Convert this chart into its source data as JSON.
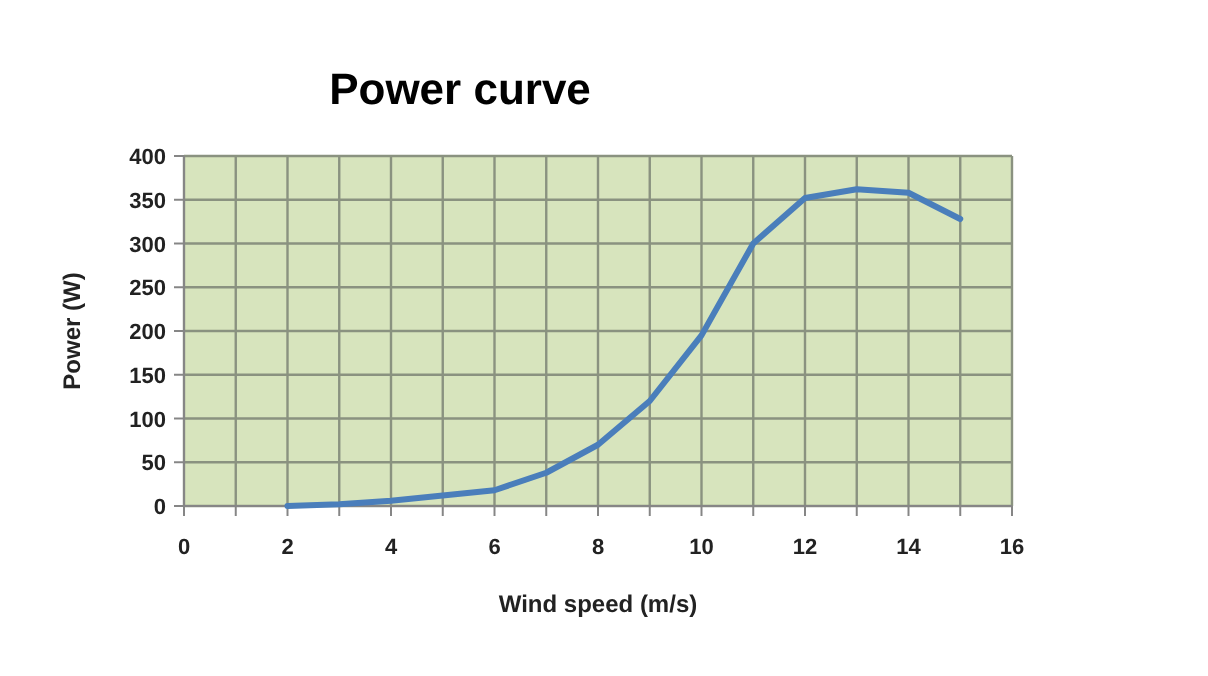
{
  "chart_data": {
    "type": "line",
    "title": "Power curve",
    "xlabel": "Wind speed (m/s)",
    "ylabel": "Power (W)",
    "x": [
      2,
      3,
      4,
      5,
      6,
      7,
      8,
      9,
      10,
      11,
      12,
      13,
      14,
      15
    ],
    "series": [
      {
        "color": "#4a7ebb",
        "values": [
          0,
          2,
          6,
          12,
          18,
          38,
          70,
          120,
          195,
          300,
          352,
          362,
          358,
          328
        ]
      }
    ],
    "xlim": [
      0,
      16
    ],
    "xticks": [
      0,
      {
        "value": 1,
        "label": null
      },
      2,
      {
        "value": 3,
        "label": null
      },
      4,
      {
        "value": 5,
        "label": null
      },
      6,
      {
        "value": 7,
        "label": null
      },
      8,
      {
        "value": 9,
        "label": null
      },
      10,
      {
        "value": 11,
        "label": null
      },
      12,
      {
        "value": 13,
        "label": null
      },
      14,
      {
        "value": 15,
        "label": null
      },
      16
    ],
    "ylim": [
      0,
      400
    ],
    "yticks": [
      0,
      50,
      100,
      150,
      200,
      250,
      300,
      350,
      400
    ],
    "grid": true,
    "marker": "none",
    "line_style": "solid"
  }
}
